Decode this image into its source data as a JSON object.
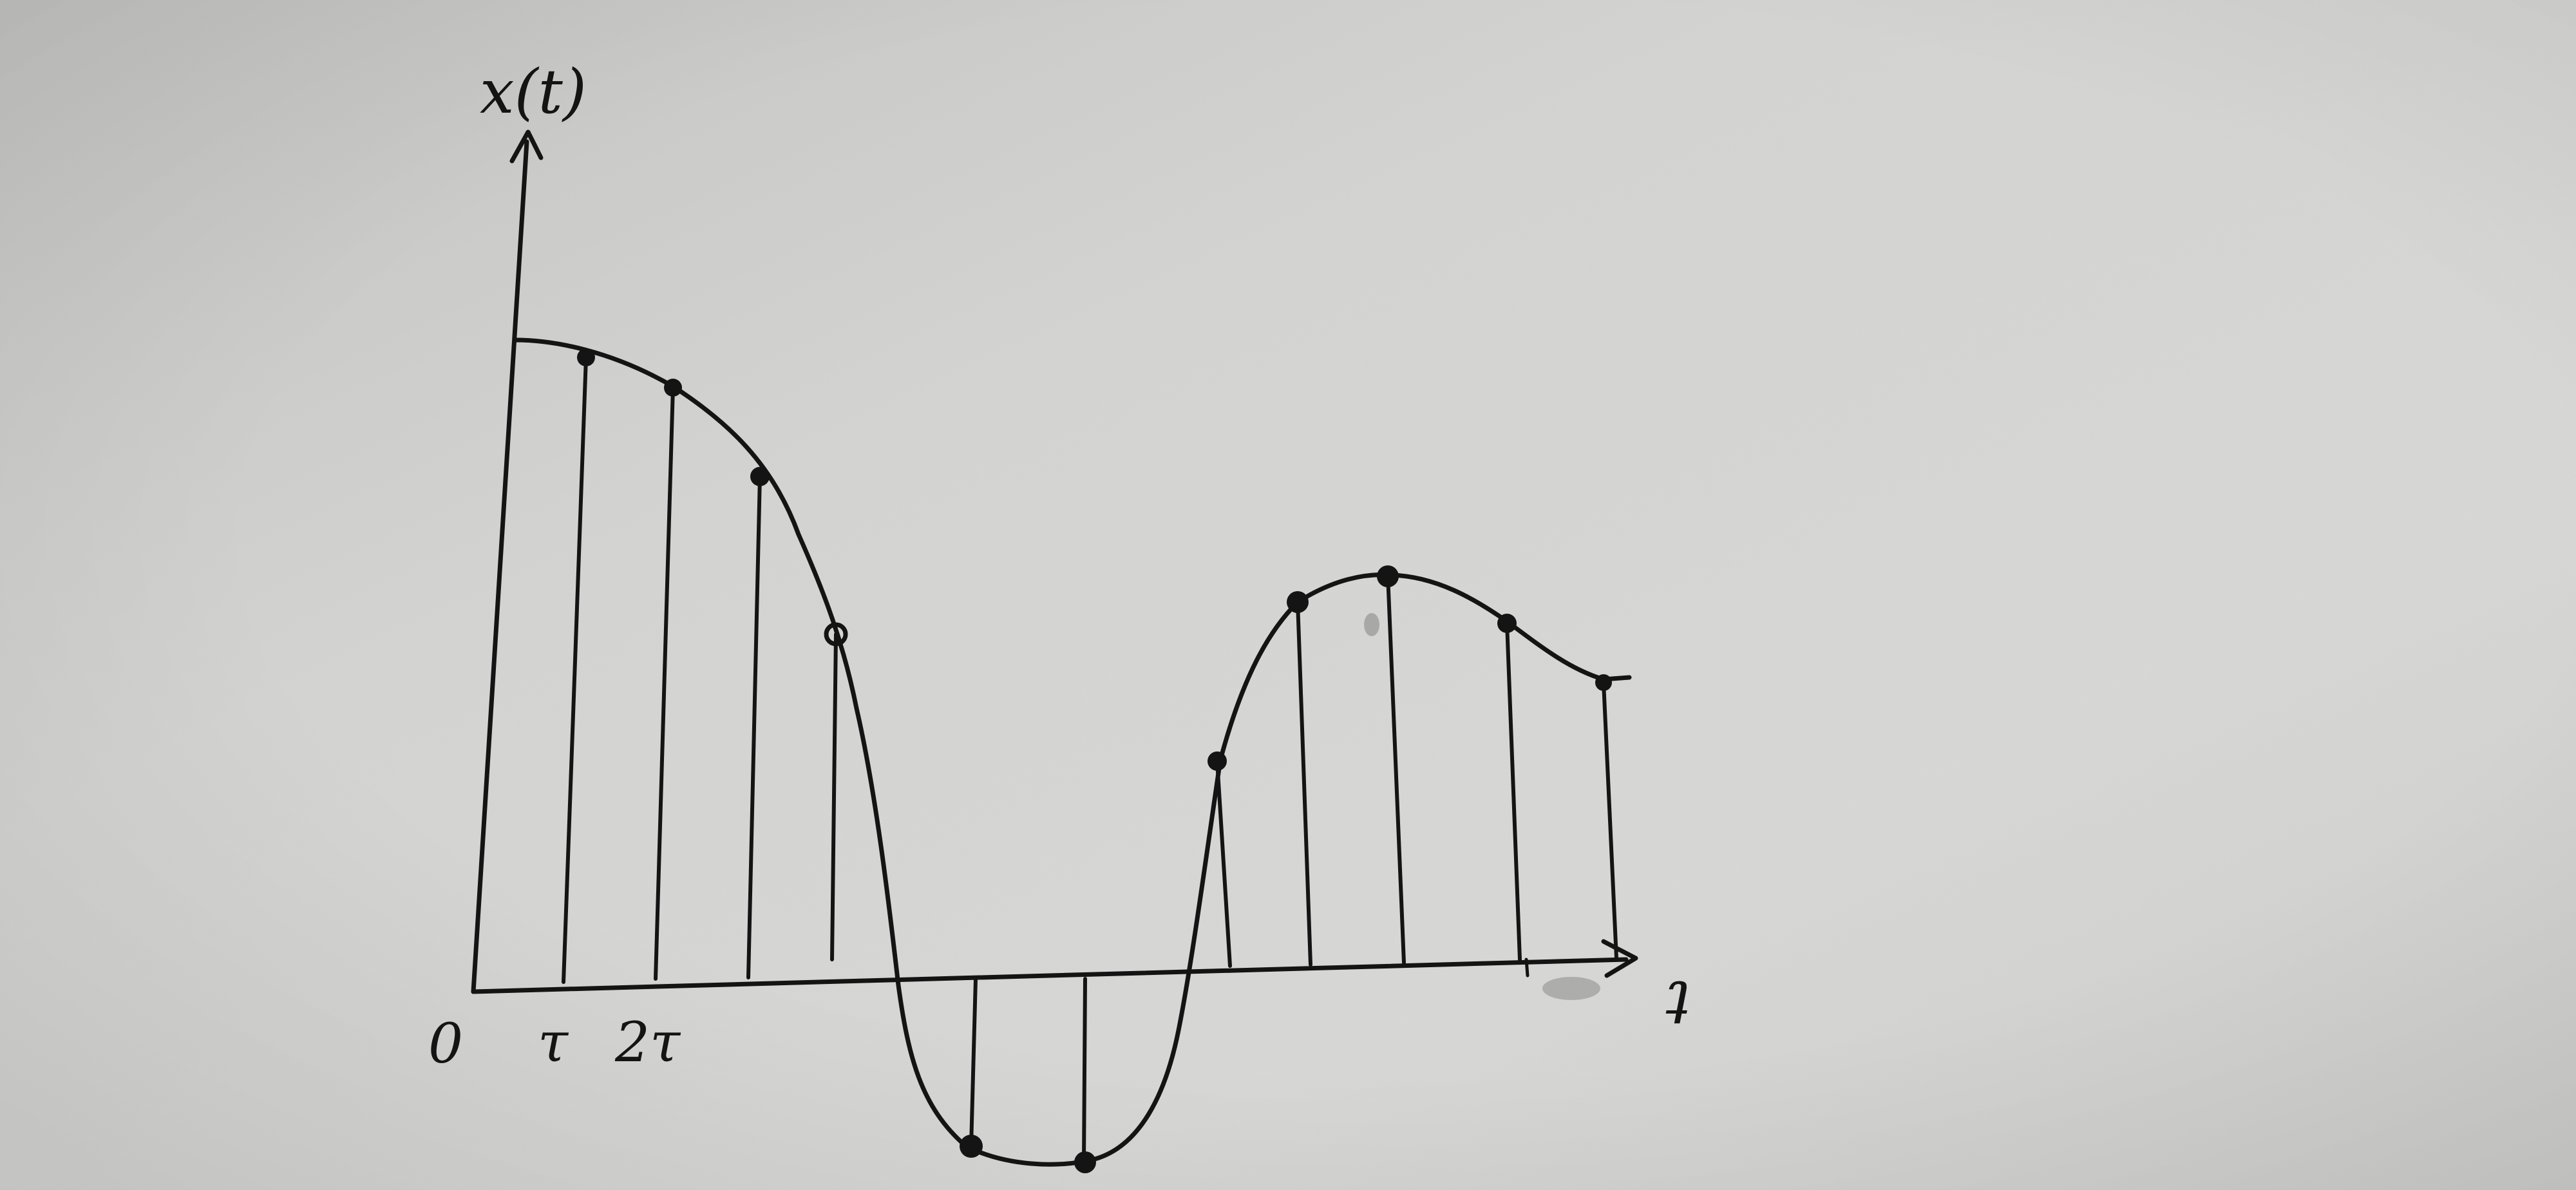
{
  "labels": {
    "y_axis": "x(t)",
    "x_axis": "t",
    "tick_0": "0",
    "tick_1": "τ",
    "tick_2": "2τ"
  },
  "colors": {
    "paper_light": "#d6d6d3",
    "paper_dark": "#bdbdbb",
    "ink": "#141414"
  }
}
